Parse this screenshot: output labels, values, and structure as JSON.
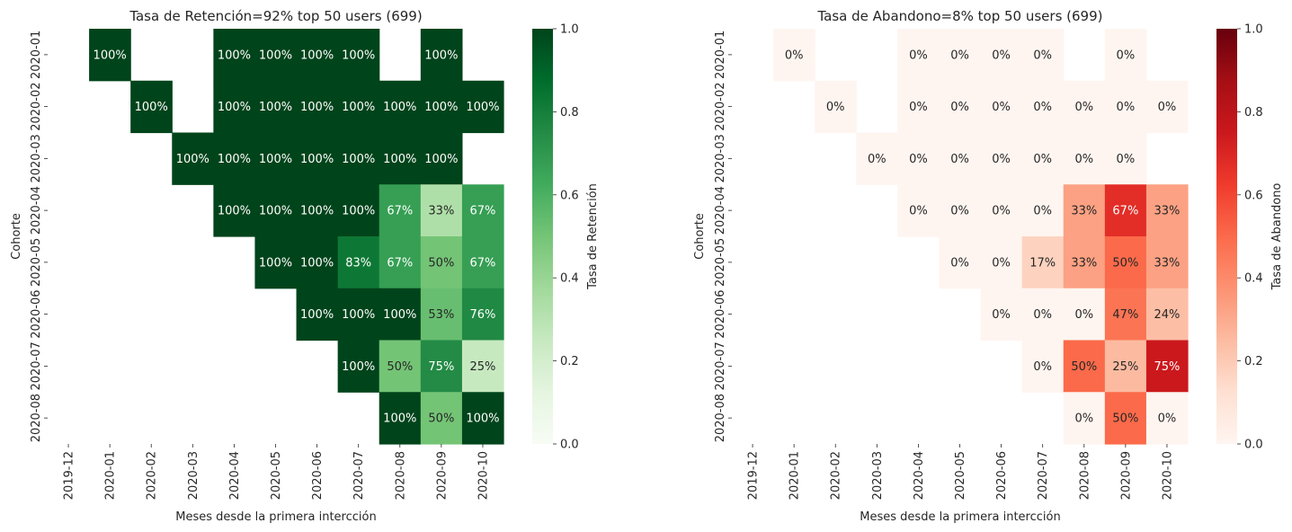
{
  "chart_data": [
    {
      "type": "heatmap",
      "title": "Tasa de Retención=92% top 50 users (699)",
      "xlabel": "Meses desde la primera intercción",
      "ylabel": "Cohorte",
      "x_categories": [
        "2019-12",
        "2020-01",
        "2020-02",
        "2020-03",
        "2020-04",
        "2020-05",
        "2020-06",
        "2020-07",
        "2020-08",
        "2020-09",
        "2020-10"
      ],
      "y_categories": [
        "2020-01",
        "2020-02",
        "2020-03",
        "2020-04",
        "2020-05",
        "2020-06",
        "2020-07",
        "2020-08"
      ],
      "values": [
        [
          null,
          1.0,
          null,
          null,
          1.0,
          1.0,
          1.0,
          1.0,
          null,
          1.0,
          null
        ],
        [
          null,
          null,
          1.0,
          null,
          1.0,
          1.0,
          1.0,
          1.0,
          1.0,
          1.0,
          1.0
        ],
        [
          null,
          null,
          null,
          1.0,
          1.0,
          1.0,
          1.0,
          1.0,
          1.0,
          1.0,
          null
        ],
        [
          null,
          null,
          null,
          null,
          1.0,
          1.0,
          1.0,
          1.0,
          0.67,
          0.33,
          0.67
        ],
        [
          null,
          null,
          null,
          null,
          null,
          1.0,
          1.0,
          0.83,
          0.67,
          0.5,
          0.67
        ],
        [
          null,
          null,
          null,
          null,
          null,
          null,
          1.0,
          1.0,
          1.0,
          0.53,
          0.76
        ],
        [
          null,
          null,
          null,
          null,
          null,
          null,
          null,
          1.0,
          0.5,
          0.75,
          0.25
        ],
        [
          null,
          null,
          null,
          null,
          null,
          null,
          null,
          null,
          1.0,
          0.5,
          1.0
        ]
      ],
      "labels": [
        [
          "",
          "100%",
          "",
          "",
          "100%",
          "100%",
          "100%",
          "100%",
          "",
          "100%",
          ""
        ],
        [
          "",
          "",
          "100%",
          "",
          "100%",
          "100%",
          "100%",
          "100%",
          "100%",
          "100%",
          "100%"
        ],
        [
          "",
          "",
          "",
          "100%",
          "100%",
          "100%",
          "100%",
          "100%",
          "100%",
          "100%",
          ""
        ],
        [
          "",
          "",
          "",
          "",
          "100%",
          "100%",
          "100%",
          "100%",
          "67%",
          "33%",
          "67%"
        ],
        [
          "",
          "",
          "",
          "",
          "",
          "100%",
          "100%",
          "83%",
          "67%",
          "50%",
          "67%"
        ],
        [
          "",
          "",
          "",
          "",
          "",
          "",
          "100%",
          "100%",
          "100%",
          "53%",
          "76%"
        ],
        [
          "",
          "",
          "",
          "",
          "",
          "",
          "",
          "100%",
          "50%",
          "75%",
          "25%"
        ],
        [
          "",
          "",
          "",
          "",
          "",
          "",
          "",
          "",
          "100%",
          "50%",
          "100%"
        ]
      ],
      "colormap": "Greens",
      "colorbar": {
        "label": "Tasa de Retención",
        "range": [
          0,
          1
        ],
        "ticks": [
          "0.0",
          "0.2",
          "0.4",
          "0.6",
          "0.8",
          "1.0"
        ]
      }
    },
    {
      "type": "heatmap",
      "title": "Tasa de Abandono=8% top 50 users (699)",
      "xlabel": "Meses desde la primera intercción",
      "ylabel": "Cohorte",
      "x_categories": [
        "2019-12",
        "2020-01",
        "2020-02",
        "2020-03",
        "2020-04",
        "2020-05",
        "2020-06",
        "2020-07",
        "2020-08",
        "2020-09",
        "2020-10"
      ],
      "y_categories": [
        "2020-01",
        "2020-02",
        "2020-03",
        "2020-04",
        "2020-05",
        "2020-06",
        "2020-07",
        "2020-08"
      ],
      "values": [
        [
          null,
          0.0,
          null,
          null,
          0.0,
          0.0,
          0.0,
          0.0,
          null,
          0.0,
          null
        ],
        [
          null,
          null,
          0.0,
          null,
          0.0,
          0.0,
          0.0,
          0.0,
          0.0,
          0.0,
          0.0
        ],
        [
          null,
          null,
          null,
          0.0,
          0.0,
          0.0,
          0.0,
          0.0,
          0.0,
          0.0,
          null
        ],
        [
          null,
          null,
          null,
          null,
          0.0,
          0.0,
          0.0,
          0.0,
          0.33,
          0.67,
          0.33
        ],
        [
          null,
          null,
          null,
          null,
          null,
          0.0,
          0.0,
          0.17,
          0.33,
          0.5,
          0.33
        ],
        [
          null,
          null,
          null,
          null,
          null,
          null,
          0.0,
          0.0,
          0.0,
          0.47,
          0.24
        ],
        [
          null,
          null,
          null,
          null,
          null,
          null,
          null,
          0.0,
          0.5,
          0.25,
          0.75
        ],
        [
          null,
          null,
          null,
          null,
          null,
          null,
          null,
          null,
          0.0,
          0.5,
          0.0
        ]
      ],
      "labels": [
        [
          "",
          "0%",
          "",
          "",
          "0%",
          "0%",
          "0%",
          "0%",
          "",
          "0%",
          ""
        ],
        [
          "",
          "",
          "0%",
          "",
          "0%",
          "0%",
          "0%",
          "0%",
          "0%",
          "0%",
          "0%"
        ],
        [
          "",
          "",
          "",
          "0%",
          "0%",
          "0%",
          "0%",
          "0%",
          "0%",
          "0%",
          ""
        ],
        [
          "",
          "",
          "",
          "",
          "0%",
          "0%",
          "0%",
          "0%",
          "33%",
          "67%",
          "33%"
        ],
        [
          "",
          "",
          "",
          "",
          "",
          "0%",
          "0%",
          "17%",
          "33%",
          "50%",
          "33%"
        ],
        [
          "",
          "",
          "",
          "",
          "",
          "",
          "0%",
          "0%",
          "0%",
          "47%",
          "24%"
        ],
        [
          "",
          "",
          "",
          "",
          "",
          "",
          "",
          "0%",
          "50%",
          "25%",
          "75%"
        ],
        [
          "",
          "",
          "",
          "",
          "",
          "",
          "",
          "",
          "0%",
          "50%",
          "0%"
        ]
      ],
      "colormap": "Reds",
      "colorbar": {
        "label": "Tasa de Abandono",
        "range": [
          0,
          1
        ],
        "ticks": [
          "0.0",
          "0.2",
          "0.4",
          "0.6",
          "0.8",
          "1.0"
        ]
      }
    }
  ]
}
